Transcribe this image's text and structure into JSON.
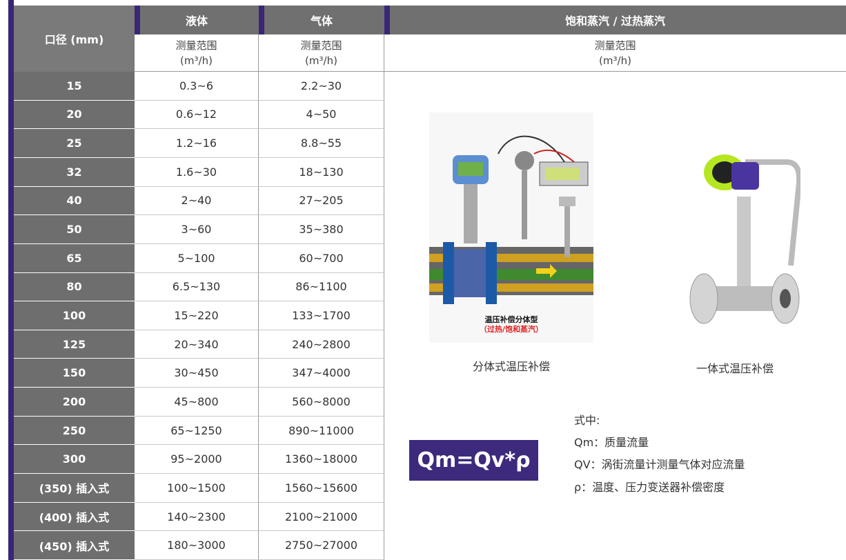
{
  "table": {
    "header": {
      "diameter": "口径 (mm)",
      "columns": [
        "液体",
        "气体",
        "饱和蒸汽 / 过热蒸汽"
      ],
      "range_label": "测量范围",
      "unit": "(m³/h)"
    },
    "rows": [
      [
        "15",
        "0.3~6",
        "2.2~30"
      ],
      [
        "20",
        "0.6~12",
        "4~50"
      ],
      [
        "25",
        "1.2~16",
        "8.8~55"
      ],
      [
        "32",
        "1.6~30",
        "18~130"
      ],
      [
        "40",
        "2~40",
        "27~205"
      ],
      [
        "50",
        "3~60",
        "35~380"
      ],
      [
        "65",
        "5~100",
        "60~700"
      ],
      [
        "80",
        "6.5~130",
        "86~1100"
      ],
      [
        "100",
        "15~220",
        "133~1700"
      ],
      [
        "125",
        "20~340",
        "240~2800"
      ],
      [
        "150",
        "30~450",
        "347~4000"
      ],
      [
        "200",
        "45~800",
        "560~8000"
      ],
      [
        "250",
        "65~1250",
        "890~11000"
      ],
      [
        "300",
        "95~2000",
        "1360~18000"
      ],
      [
        "(350) 插入式",
        "100~1500",
        "1560~15600"
      ],
      [
        "(400) 插入式",
        "140~2300",
        "2100~21000"
      ],
      [
        "(450) 插入式",
        "180~3000",
        "2750~27000"
      ]
    ]
  },
  "figures": [
    {
      "caption": "分体式温压补偿",
      "labels": [
        "温压补偿分体型",
        "（过热/饱和蒸汽）"
      ]
    },
    {
      "caption": "一体式温压补偿"
    }
  ],
  "formula": {
    "expression": "Qm=Qv*ρ",
    "lines": [
      "式中:",
      "Qm：质量流量",
      "QV：涡街流量计测量气体对应流量",
      "ρ：温度、压力变送器补偿密度"
    ]
  }
}
